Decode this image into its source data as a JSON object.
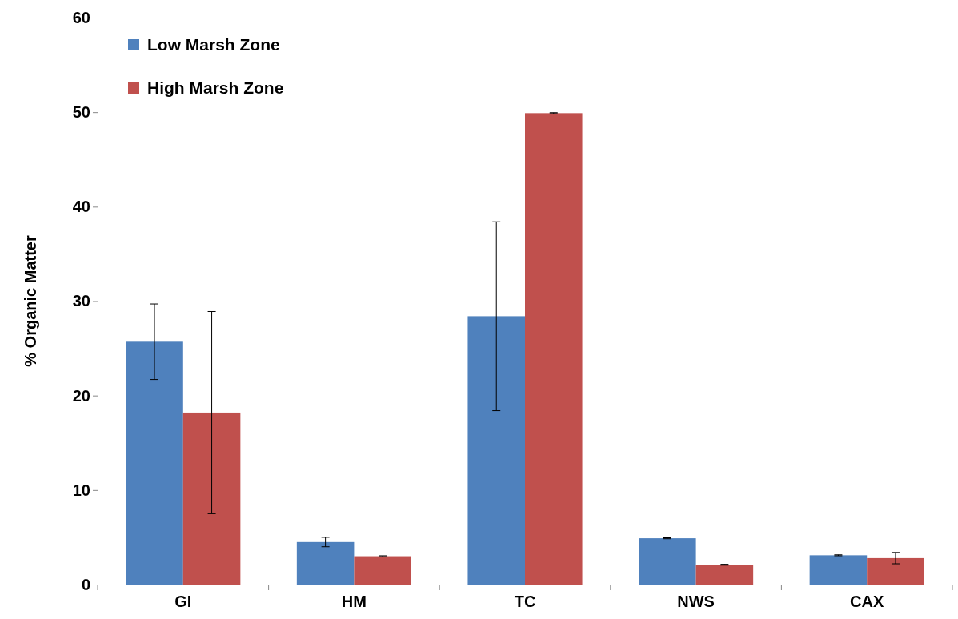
{
  "chart_data": {
    "type": "bar",
    "ylabel": "% Organic Matter",
    "categories": [
      "GI",
      "HM",
      "TC",
      "NWS",
      "CAX"
    ],
    "series": [
      {
        "name": "Low Marsh Zone",
        "color": "#4f81bd",
        "values": [
          25.7,
          4.5,
          28.4,
          4.9,
          3.1
        ],
        "errors": [
          4.0,
          0.5,
          10.0,
          0.05,
          0.05
        ]
      },
      {
        "name": "High Marsh Zone",
        "color": "#c0504d",
        "values": [
          18.2,
          3.0,
          49.9,
          2.1,
          2.8
        ],
        "errors": [
          10.7,
          0.05,
          0.05,
          0.05,
          0.6
        ]
      }
    ],
    "ylim": [
      0,
      60
    ],
    "yticks": [
      0,
      10,
      20,
      30,
      40,
      50,
      60
    ],
    "grid": false,
    "legend": "top left"
  }
}
